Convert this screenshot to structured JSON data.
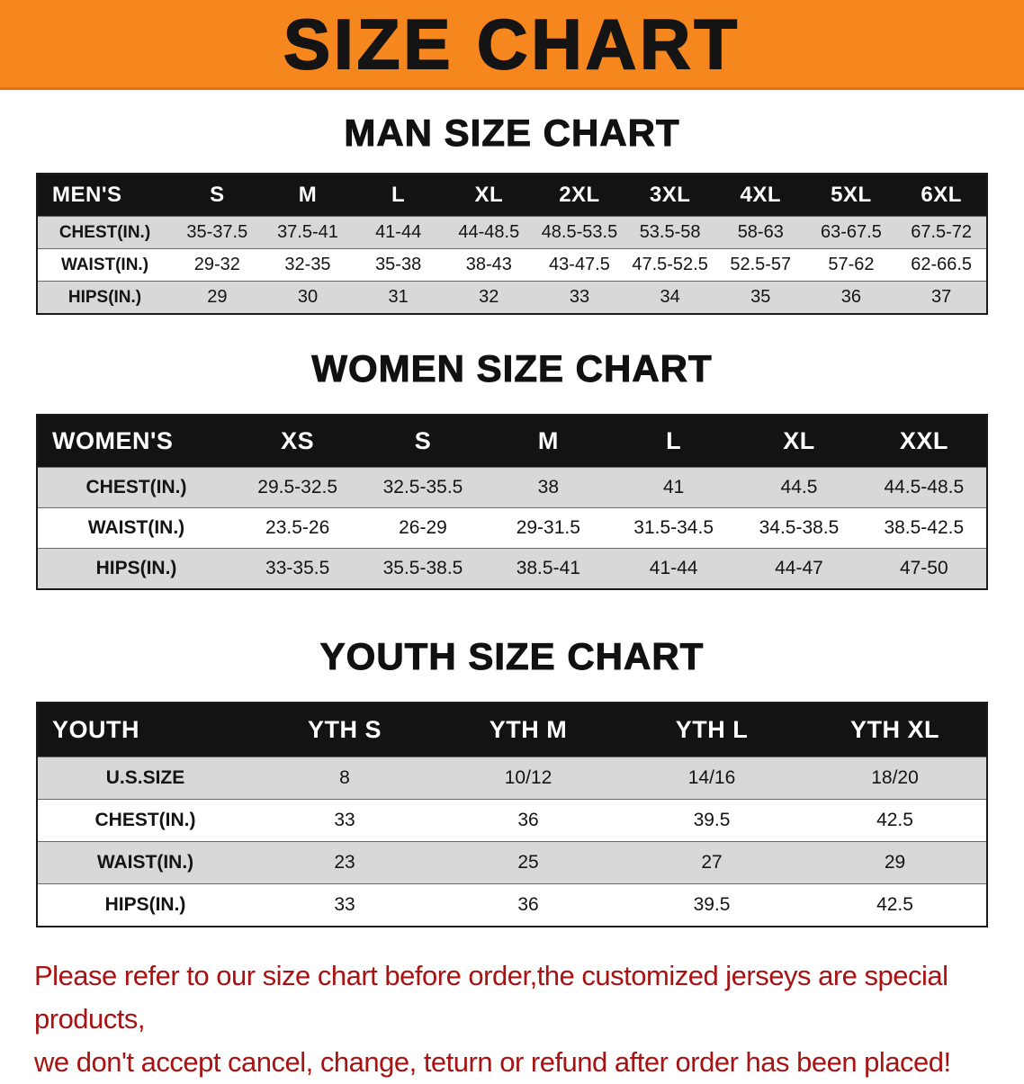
{
  "banner": {
    "title": "SIZE CHART"
  },
  "colors": {
    "banner_bg": "#f6871f",
    "table_header_bg": "#131313",
    "row_stripe": "#d8d8d8",
    "footer_text": "#a81212"
  },
  "men": {
    "heading": "MAN SIZE CHART",
    "header": [
      "MEN'S",
      "S",
      "M",
      "L",
      "XL",
      "2XL",
      "3XL",
      "4XL",
      "5XL",
      "6XL"
    ],
    "rows": [
      [
        "CHEST(IN.)",
        "35-37.5",
        "37.5-41",
        "41-44",
        "44-48.5",
        "48.5-53.5",
        "53.5-58",
        "58-63",
        "63-67.5",
        "67.5-72"
      ],
      [
        "WAIST(IN.)",
        "29-32",
        "32-35",
        "35-38",
        "38-43",
        "43-47.5",
        "47.5-52.5",
        "52.5-57",
        "57-62",
        "62-66.5"
      ],
      [
        "HIPS(IN.)",
        "29",
        "30",
        "31",
        "32",
        "33",
        "34",
        "35",
        "36",
        "37"
      ]
    ]
  },
  "women": {
    "heading": "WOMEN SIZE CHART",
    "header": [
      "WOMEN'S",
      "XS",
      "S",
      "M",
      "L",
      "XL",
      "XXL"
    ],
    "rows": [
      [
        "CHEST(IN.)",
        "29.5-32.5",
        "32.5-35.5",
        "38",
        "41",
        "44.5",
        "44.5-48.5"
      ],
      [
        "WAIST(IN.)",
        "23.5-26",
        "26-29",
        "29-31.5",
        "31.5-34.5",
        "34.5-38.5",
        "38.5-42.5"
      ],
      [
        "HIPS(IN.)",
        "33-35.5",
        "35.5-38.5",
        "38.5-41",
        "41-44",
        "44-47",
        "47-50"
      ]
    ]
  },
  "youth": {
    "heading": "YOUTH SIZE CHART",
    "header": [
      "YOUTH",
      "YTH S",
      "YTH M",
      "YTH L",
      "YTH XL"
    ],
    "rows": [
      [
        "U.S.SIZE",
        "8",
        "10/12",
        "14/16",
        "18/20"
      ],
      [
        "CHEST(IN.)",
        "33",
        "36",
        "39.5",
        "42.5"
      ],
      [
        "WAIST(IN.)",
        "23",
        "25",
        "27",
        "29"
      ],
      [
        "HIPS(IN.)",
        "33",
        "36",
        "39.5",
        "42.5"
      ]
    ]
  },
  "footer": {
    "line1": "Please refer to our size chart before order,the customized jerseys are special products,",
    "line2": "we don't accept cancel, change, teturn or refund after order has been placed!"
  }
}
